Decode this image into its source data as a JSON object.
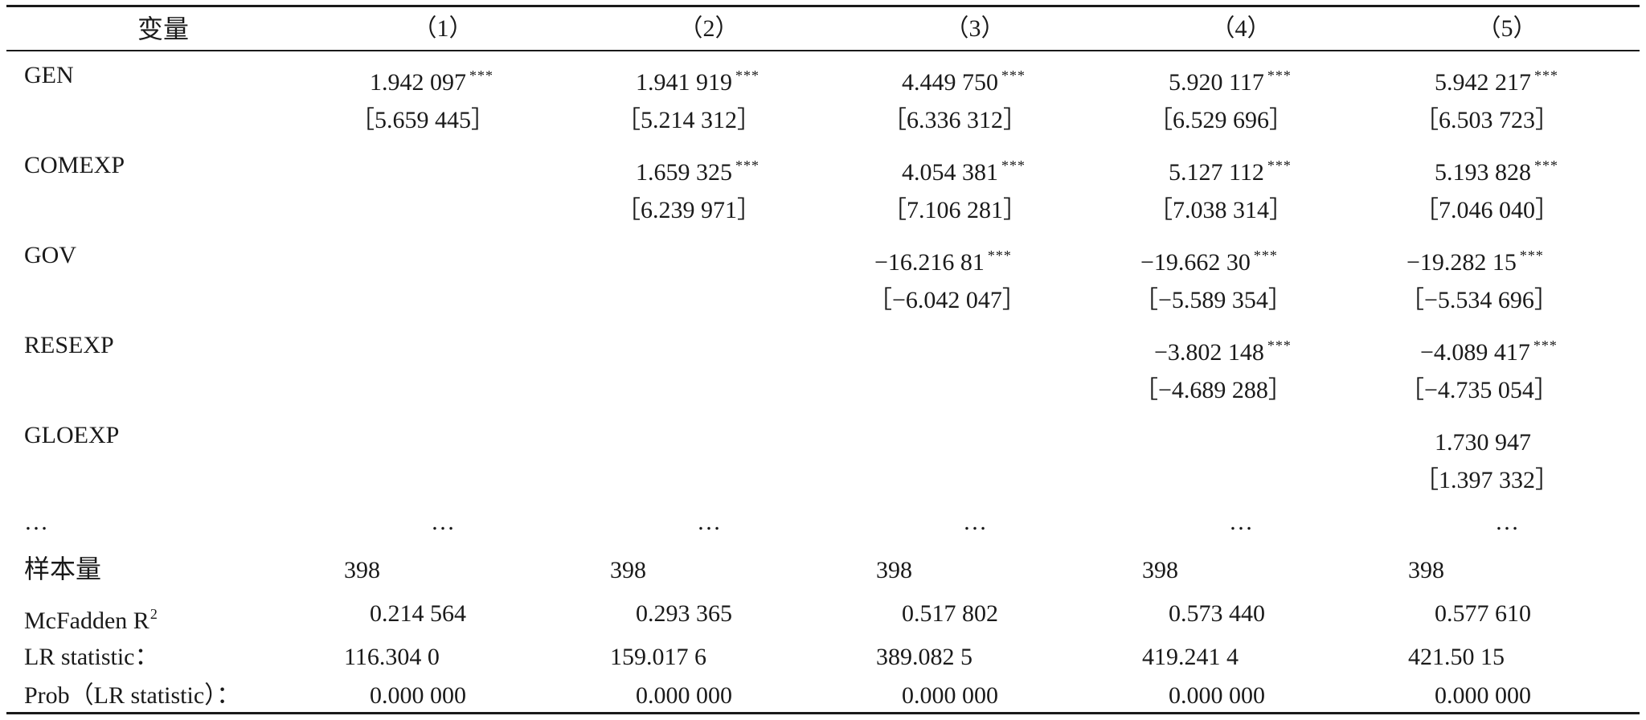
{
  "table": {
    "headers": [
      "变量",
      "（1）",
      "（2）",
      "（3）",
      "（4）",
      "（5）"
    ],
    "rows": [
      {
        "label": "GEN",
        "coef": [
          "1.942 097",
          "1.941 919",
          "4.449 750",
          "5.920 117",
          "5.942 217"
        ],
        "stars": [
          "***",
          "***",
          "***",
          "***",
          "***"
        ],
        "t": [
          "［5.659 445］",
          "［5.214 312］",
          "［6.336 312］",
          "［6.529 696］",
          "［6.503 723］"
        ]
      },
      {
        "label": "COMEXP",
        "coef": [
          "",
          "1.659 325",
          "4.054 381",
          "5.127 112",
          "5.193 828"
        ],
        "stars": [
          "",
          "***",
          "***",
          "***",
          "***"
        ],
        "t": [
          "",
          "［6.239 971］",
          "［7.106 281］",
          "［7.038 314］",
          "［7.046 040］"
        ]
      },
      {
        "label": "GOV",
        "coef": [
          "",
          "",
          "−16.216 81",
          "−19.662 30",
          "−19.282 15"
        ],
        "stars": [
          "",
          "",
          "***",
          "***",
          "***"
        ],
        "t": [
          "",
          "",
          "［−6.042 047］",
          "［−5.589 354］",
          "［−5.534 696］"
        ]
      },
      {
        "label": "RESEXP",
        "coef": [
          "",
          "",
          "",
          "−3.802 148",
          "−4.089 417"
        ],
        "stars": [
          "",
          "",
          "",
          "***",
          "***"
        ],
        "t": [
          "",
          "",
          "",
          "［−4.689 288］",
          "［−4.735 054］"
        ]
      },
      {
        "label": "GLOEXP",
        "coef": [
          "",
          "",
          "",
          "",
          "1.730 947"
        ],
        "stars": [
          "",
          "",
          "",
          "",
          ""
        ],
        "t": [
          "",
          "",
          "",
          "",
          "［1.397 332］"
        ]
      }
    ],
    "ellipsis": [
      "…",
      "…",
      "…",
      "…",
      "…",
      "…"
    ],
    "stats": [
      {
        "label": "样本量",
        "values": [
          "398",
          "398",
          "398",
          "398",
          "398"
        ]
      },
      {
        "label": "McFadden R",
        "label_sup": "2",
        "values": [
          "0.214 564",
          "0.293 365",
          "0.517 802",
          "0.573 440",
          "0.577 610"
        ]
      },
      {
        "label": "LR statistic：",
        "values": [
          "116.304 0",
          "159.017 6",
          "389.082 5",
          "419.241 4",
          "421.50 15"
        ]
      },
      {
        "label": "Prob（LR statistic）：",
        "values": [
          "0.000 000",
          "0.000 000",
          "0.000 000",
          "0.000 000",
          "0.000 000"
        ]
      }
    ]
  }
}
